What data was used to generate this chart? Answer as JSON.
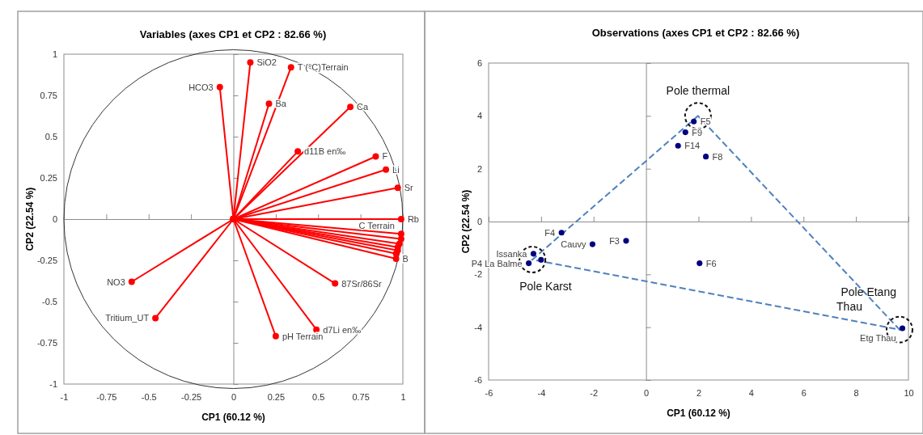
{
  "chart_data": [
    {
      "type": "line",
      "title": "Variables (axes CP1 et CP2 : 82.66 %)",
      "xlabel": "CP1 (60.12 %)",
      "ylabel": "CP2 (22.54 %)",
      "xlim": [
        -1,
        1
      ],
      "ylim": [
        -1,
        1
      ],
      "xticks": [
        -1,
        -0.75,
        -0.5,
        -0.25,
        0,
        0.25,
        0.5,
        0.75,
        1
      ],
      "yticks": [
        -1,
        -0.75,
        -0.5,
        -0.25,
        0,
        0.25,
        0.5,
        0.75,
        1
      ],
      "marker": "circle",
      "series": [
        {
          "name": "SiO2",
          "color": "#ff0000",
          "x": [
            0,
            0.1
          ],
          "values": [
            0,
            0.95
          ]
        },
        {
          "name": "T (°C)Terrain",
          "color": "#ff0000",
          "x": [
            0,
            0.34
          ],
          "values": [
            0,
            0.92
          ]
        },
        {
          "name": "HCO3",
          "color": "#ff0000",
          "x": [
            0,
            -0.08
          ],
          "values": [
            0,
            0.8
          ]
        },
        {
          "name": "Ba",
          "color": "#ff0000",
          "x": [
            0,
            0.21
          ],
          "values": [
            0,
            0.7
          ]
        },
        {
          "name": "Ca",
          "color": "#ff0000",
          "x": [
            0,
            0.69
          ],
          "values": [
            0,
            0.68
          ]
        },
        {
          "name": "d11B en‰",
          "color": "#ff0000",
          "x": [
            0,
            0.38
          ],
          "values": [
            0,
            0.41
          ]
        },
        {
          "name": "F",
          "color": "#ff0000",
          "x": [
            0,
            0.84
          ],
          "values": [
            0,
            0.38
          ]
        },
        {
          "name": "Li",
          "color": "#ff0000",
          "x": [
            0,
            0.9
          ],
          "values": [
            0,
            0.3
          ]
        },
        {
          "name": "Sr",
          "color": "#ff0000",
          "x": [
            0,
            0.97
          ],
          "values": [
            0,
            0.19
          ]
        },
        {
          "name": "Rb",
          "color": "#ff0000",
          "x": [
            0,
            0.99
          ],
          "values": [
            0,
            0
          ]
        },
        {
          "name": "C Terrain",
          "color": "#ff0000",
          "x": [
            0,
            0.99
          ],
          "values": [
            0,
            -0.09
          ]
        },
        {
          "color": "#ff0000",
          "x": [
            0,
            0.99
          ],
          "values": [
            0,
            -0.12
          ]
        },
        {
          "color": "#ff0000",
          "x": [
            0,
            0.98
          ],
          "values": [
            0,
            -0.15
          ]
        },
        {
          "color": "#ff0000",
          "x": [
            0,
            0.97
          ],
          "values": [
            0,
            -0.17
          ]
        },
        {
          "color": "#ff0000",
          "x": [
            0,
            0.97
          ],
          "values": [
            0,
            -0.19
          ]
        },
        {
          "color": "#ff0000",
          "x": [
            0,
            0.96
          ],
          "values": [
            0,
            -0.21
          ]
        },
        {
          "name": "B",
          "color": "#ff0000",
          "x": [
            0,
            0.96
          ],
          "values": [
            0,
            -0.24
          ]
        },
        {
          "name": "NO3",
          "color": "#ff0000",
          "x": [
            0,
            -0.6
          ],
          "values": [
            0,
            -0.38
          ]
        },
        {
          "name": "Tritium_UT",
          "color": "#ff0000",
          "x": [
            0,
            -0.46
          ],
          "values": [
            0,
            -0.6
          ]
        },
        {
          "name": "87Sr/86Sr",
          "color": "#ff0000",
          "x": [
            0,
            0.6
          ],
          "values": [
            0,
            -0.39
          ]
        },
        {
          "name": "d7Li en‰",
          "color": "#ff0000",
          "x": [
            0,
            0.49
          ],
          "values": [
            0,
            -0.67
          ]
        },
        {
          "name": "pH Terrain",
          "color": "#ff0000",
          "x": [
            0,
            0.25
          ],
          "values": [
            0,
            -0.71
          ]
        }
      ]
    },
    {
      "type": "scatter",
      "title": "Observations (axes CP1 et CP2 : 82.66 %)",
      "xlabel": "CP1 (60.12 %)",
      "ylabel": "CP2 (22.54 %)",
      "xlim": [
        -6,
        10
      ],
      "ylim": [
        -6,
        6
      ],
      "xticks": [
        -6,
        -4,
        -2,
        0,
        2,
        4,
        6,
        8,
        10
      ],
      "yticks": [
        -6,
        -4,
        -2,
        0,
        2,
        4,
        6
      ],
      "marker": "circle",
      "series": [
        {
          "name": "F5",
          "color": "#000080",
          "x": [
            1.82
          ],
          "values": [
            3.79
          ]
        },
        {
          "name": "F9",
          "color": "#000080",
          "x": [
            1.5
          ],
          "values": [
            3.38
          ]
        },
        {
          "name": "F14",
          "color": "#000080",
          "x": [
            1.22
          ],
          "values": [
            2.87
          ]
        },
        {
          "name": "F8",
          "color": "#000080",
          "x": [
            2.28
          ],
          "values": [
            2.46
          ]
        },
        {
          "name": "F4",
          "color": "#000080",
          "x": [
            -3.22
          ],
          "values": [
            -0.42
          ]
        },
        {
          "name": "Cauvy",
          "color": "#000080",
          "x": [
            -2.04
          ],
          "values": [
            -0.86
          ]
        },
        {
          "name": "F3",
          "color": "#000080",
          "x": [
            -0.76
          ],
          "values": [
            -0.73
          ]
        },
        {
          "name": "F6",
          "color": "#000080",
          "x": [
            2.04
          ],
          "values": [
            -1.58
          ]
        },
        {
          "name": "Issanka",
          "color": "#000080",
          "x": [
            -4.29
          ],
          "values": [
            -1.22
          ]
        },
        {
          "color": "#000080",
          "x": [
            -4.0
          ],
          "values": [
            -1.45
          ]
        },
        {
          "name": "P4 La Balme",
          "color": "#000080",
          "x": [
            -4.47
          ],
          "values": [
            -1.58
          ]
        },
        {
          "name": "Etg Thau",
          "color": "#000080",
          "x": [
            9.77
          ],
          "values": [
            -4.04
          ]
        }
      ],
      "annotations": [
        {
          "text": "Pole thermal",
          "x": 1.98,
          "y": 4.0
        },
        {
          "text": "Pole Karst",
          "x": -4.33,
          "y": -1.44
        },
        {
          "text": "Pole Etang Thau",
          "x": 9.66,
          "y": -4.09
        }
      ]
    }
  ]
}
